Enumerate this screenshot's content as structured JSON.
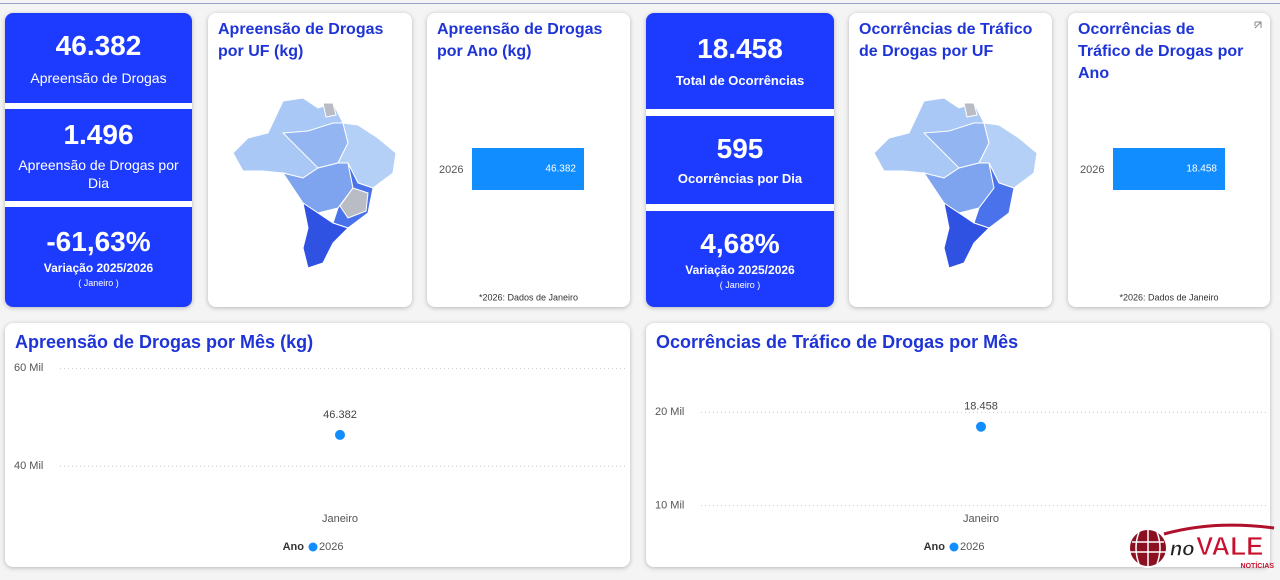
{
  "seizures": {
    "kpis": [
      {
        "value": "46.382",
        "label": "Apreensão de Drogas"
      },
      {
        "value": "1.496",
        "label": "Apreensão de Drogas por Dia"
      },
      {
        "value": "-61,63%",
        "label": "Variação 2025/2026",
        "period": "( Janeiro )"
      }
    ],
    "map_title": "Apreensão de Drogas por UF (kg)"
  },
  "trafficking": {
    "kpis": [
      {
        "value": "18.458",
        "label": "Total de Ocorrências"
      },
      {
        "value": "595",
        "label": "Ocorrências por Dia"
      },
      {
        "value": "4,68%",
        "label": "Variação 2025/2026",
        "period": "( Janeiro )"
      }
    ],
    "map_title": "Ocorrências de Tráfico de Drogas por UF"
  },
  "chart_data": [
    {
      "type": "bar",
      "orientation": "horizontal",
      "title": "Apreensão de Drogas por Ano (kg)",
      "categories": [
        "2026"
      ],
      "values": [
        46382
      ],
      "value_labels": [
        "46.382"
      ],
      "color": "#118dff",
      "note": "*2026: Dados de Janeiro"
    },
    {
      "type": "line",
      "title": "Apreensão de Drogas por Mês (kg)",
      "categories": [
        "Janeiro"
      ],
      "series": [
        {
          "name": "2026",
          "color": "#118dff",
          "values": [
            46382
          ],
          "value_labels": [
            "46.382"
          ]
        }
      ],
      "ylim": [
        30000,
        61500
      ],
      "yticks": [
        {
          "value": 40000,
          "label": "40 Mil"
        },
        {
          "value": 60000,
          "label": "60 Mil"
        }
      ],
      "grid": true,
      "legend_title": "Ano"
    },
    {
      "type": "bar",
      "orientation": "horizontal",
      "title": "Ocorrências de Tráfico de Drogas por Ano",
      "categories": [
        "2026"
      ],
      "values": [
        18458
      ],
      "value_labels": [
        "18.458"
      ],
      "color": "#118dff",
      "note": "*2026: Dados de Janeiro"
    },
    {
      "type": "line",
      "title": "Ocorrências de Tráfico de Drogas por Mês",
      "categories": [
        "Janeiro"
      ],
      "series": [
        {
          "name": "2026",
          "color": "#118dff",
          "values": [
            18458
          ],
          "value_labels": [
            "18.458"
          ]
        }
      ],
      "ylim": [
        9000,
        25500
      ],
      "yticks": [
        {
          "value": 10000,
          "label": "10 Mil"
        },
        {
          "value": 20000,
          "label": "20 Mil"
        }
      ],
      "grid": true,
      "legend_title": "Ano"
    }
  ],
  "watermark": {
    "prefix": "no",
    "brand": "VALE",
    "tagline": "NOTÍCIAS"
  }
}
